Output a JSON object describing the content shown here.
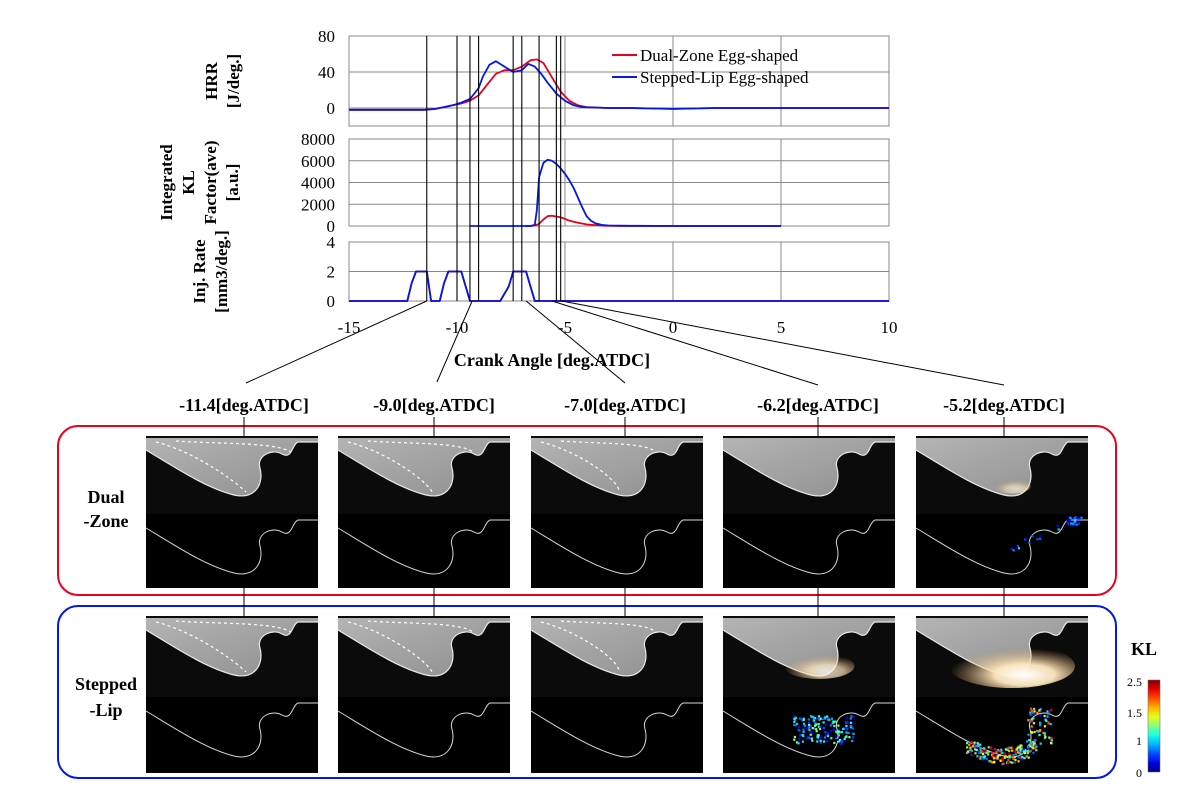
{
  "chart_data": {
    "type": "line",
    "xlabel": "Crank Angle [deg.ATDC]",
    "xlim": [
      -15,
      10
    ],
    "xticks": [
      -15,
      -10,
      -5,
      0,
      5,
      10
    ],
    "xtick_labels": [
      "-15",
      "-10",
      "-5",
      "0",
      "5",
      "10"
    ],
    "colors": {
      "dual": "#e8001c",
      "stepped": "#0018e8"
    },
    "legend": {
      "position": "top-right",
      "entries": [
        "Dual-Zone Egg-shaped",
        "Stepped-Lip Egg-shaped"
      ]
    },
    "panels": [
      {
        "id": "hrr",
        "ylabel_lines": [
          "HRR",
          "[J/deg.]"
        ],
        "ylim": [
          -20,
          80
        ],
        "yticks": [
          0,
          40,
          80
        ],
        "ytick_labels": [
          "0",
          "40",
          "80"
        ],
        "series": [
          {
            "name": "Dual-Zone Egg-shaped",
            "color_key": "dual",
            "x": [
              -15,
              -13,
              -12,
              -11.5,
              -11,
              -10.6,
              -10.2,
              -9.8,
              -9.4,
              -9.0,
              -8.6,
              -8.2,
              -7.8,
              -7.4,
              -7.0,
              -6.6,
              -6.3,
              -6.0,
              -5.6,
              -5.2,
              -4.8,
              -4.4,
              -4.0,
              -3.0,
              -2.0,
              0,
              2,
              4,
              6,
              8,
              10
            ],
            "y": [
              -2,
              -2,
              -2,
              -2,
              -1,
              1,
              3,
              5,
              8,
              14,
              26,
              38,
              42,
              42,
              46,
              53,
              54,
              50,
              34,
              18,
              8,
              3,
              1,
              0,
              0,
              -1,
              0,
              0,
              0,
              0,
              0
            ]
          },
          {
            "name": "Stepped-Lip Egg-shaped",
            "color_key": "stepped",
            "x": [
              -15,
              -13,
              -12,
              -11.5,
              -11,
              -10.6,
              -10.2,
              -9.8,
              -9.4,
              -9.0,
              -8.8,
              -8.5,
              -8.2,
              -7.8,
              -7.4,
              -7.0,
              -6.7,
              -6.4,
              -6.1,
              -5.8,
              -5.4,
              -5.0,
              -4.6,
              -4.2,
              -3.0,
              -2.0,
              0,
              2,
              4,
              6,
              8,
              10
            ],
            "y": [
              -2,
              -2,
              -2,
              -2,
              -1,
              1,
              3,
              6,
              10,
              22,
              35,
              48,
              52,
              46,
              40,
              42,
              49,
              46,
              38,
              28,
              16,
              8,
              3,
              1,
              0,
              0,
              -1,
              0,
              0,
              0,
              0,
              0
            ]
          }
        ]
      },
      {
        "id": "kl",
        "ylabel_lines": [
          "Integrated",
          "KL",
          "Factor(ave)",
          "[a.u.]"
        ],
        "ylim": [
          0,
          8000
        ],
        "yticks": [
          0,
          2000,
          4000,
          6000,
          8000
        ],
        "ytick_labels": [
          "0",
          "2000",
          "4000",
          "6000",
          "8000"
        ],
        "series": [
          {
            "name": "Dual-Zone Egg-shaped",
            "color_key": "dual",
            "x": [
              -6.8,
              -6.6,
              -6.4,
              -6.2,
              -6.0,
              -5.8,
              -5.6,
              -5.2,
              -4.8,
              -4.4,
              -4.0,
              -3.6,
              -3.2,
              -2.5,
              0,
              2,
              4,
              5
            ],
            "y": [
              0,
              0,
              50,
              200,
              600,
              900,
              950,
              800,
              500,
              300,
              150,
              80,
              30,
              0,
              0,
              0,
              0,
              0
            ]
          },
          {
            "name": "Stepped-Lip Egg-shaped",
            "color_key": "stepped",
            "x": [
              -9.4,
              -8,
              -7,
              -6.6,
              -6.4,
              -6.3,
              -6.2,
              -6.0,
              -5.8,
              -5.6,
              -5.4,
              -5.2,
              -5.0,
              -4.8,
              -4.6,
              -4.4,
              -4.2,
              -4.0,
              -3.8,
              -3.6,
              -3.3,
              -3.0,
              -2.0,
              0,
              2,
              4,
              5
            ],
            "y": [
              0,
              0,
              0,
              0,
              100,
              1500,
              4500,
              5800,
              6100,
              6000,
              5700,
              5300,
              4800,
              4200,
              3500,
              2600,
              1700,
              900,
              500,
              250,
              100,
              50,
              20,
              0,
              0,
              0,
              0
            ]
          }
        ]
      },
      {
        "id": "inj",
        "ylabel_lines": [
          "Inj. Rate",
          "[mm3/deg.]"
        ],
        "ylim": [
          0,
          4
        ],
        "yticks": [
          0,
          2,
          4
        ],
        "ytick_labels": [
          "0",
          "2",
          "4"
        ],
        "series": [
          {
            "name": "Dual-Zone Egg-shaped",
            "color_key": "dual",
            "x": [
              -15,
              -12.3,
              -12.1,
              -11.9,
              -11.6,
              -11.4,
              -11.2,
              -10.8,
              -10.6,
              -10.4,
              -10.1,
              -9.8,
              -9.6,
              -9.4,
              -9.0,
              -8.0,
              -7.6,
              -7.4,
              -7.2,
              -7.0,
              -6.8,
              -6.6,
              -6.4,
              -5,
              10
            ],
            "y": [
              0,
              0,
              1.2,
              2,
              2,
              2,
              0,
              0,
              1.2,
              2,
              2,
              2,
              1.0,
              0,
              0,
              0,
              1.0,
              2,
              2,
              2,
              2,
              1.0,
              0,
              0,
              0
            ]
          },
          {
            "name": "Stepped-Lip Egg-shaped",
            "color_key": "stepped",
            "x": [
              -15,
              -12.3,
              -12.1,
              -11.9,
              -11.6,
              -11.4,
              -11.2,
              -10.8,
              -10.6,
              -10.4,
              -10.1,
              -9.8,
              -9.6,
              -9.4,
              -9.0,
              -8.0,
              -7.6,
              -7.4,
              -7.2,
              -7.0,
              -6.8,
              -6.6,
              -6.4,
              -5,
              10
            ],
            "y": [
              0,
              0,
              1.2,
              2,
              2,
              2,
              0,
              0,
              1.2,
              2,
              2,
              2,
              1.0,
              0,
              0,
              0,
              1.0,
              2,
              2,
              2,
              2,
              1.0,
              0,
              0,
              0
            ]
          }
        ]
      }
    ],
    "marker_lines": [
      -11.4,
      -10.0,
      -9.4,
      -9.0,
      -7.4,
      -7.0,
      -6.2,
      -5.4,
      -5.2
    ],
    "frames": [
      {
        "label": "-11.4[deg.ATDC]",
        "crank_angle": -11.4,
        "dual_kl": "none",
        "stepped_kl": "none",
        "dual_flame": 0,
        "stepped_flame": 0
      },
      {
        "label": "-9.0[deg.ATDC]",
        "crank_angle": -9.0,
        "dual_kl": "none",
        "stepped_kl": "none",
        "dual_flame": 0,
        "stepped_flame": 0
      },
      {
        "label": "-7.0[deg.ATDC]",
        "crank_angle": -7.0,
        "dual_kl": "none",
        "stepped_kl": "none",
        "dual_flame": 0,
        "stepped_flame": 0
      },
      {
        "label": "-6.2[deg.ATDC]",
        "crank_angle": -6.2,
        "dual_kl": "none",
        "stepped_kl": "moderate",
        "dual_flame": 0,
        "stepped_flame": 0.5
      },
      {
        "label": "-5.2[deg.ATDC]",
        "crank_angle": -5.2,
        "dual_kl": "weak",
        "stepped_kl": "strong",
        "dual_flame": 0.2,
        "stepped_flame": 1
      }
    ],
    "rows": [
      {
        "label_lines": [
          "Dual",
          "-Zone"
        ],
        "color_key": "dual"
      },
      {
        "label_lines": [
          "Stepped",
          "-Lip"
        ],
        "color_key": "stepped"
      }
    ],
    "colorbar": {
      "title": "KL",
      "range": [
        0,
        2.5
      ],
      "ticks": [
        "2.5",
        "1.5",
        "1",
        "0"
      ],
      "colormap": "jet"
    }
  }
}
